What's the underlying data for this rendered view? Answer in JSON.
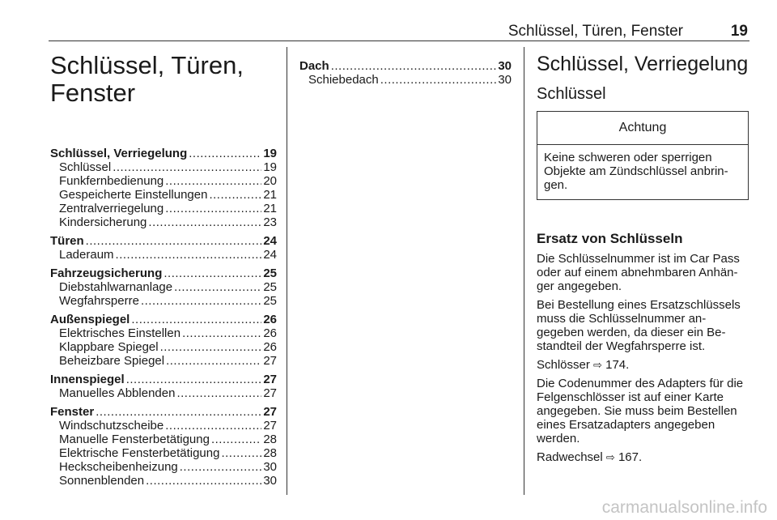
{
  "header": {
    "title": "Schlüssel, Türen, Fenster",
    "page": "19"
  },
  "chapter_title": "Schlüssel, Türen, Fenster",
  "toc": [
    {
      "label": "Schlüssel, Verriegelung",
      "page": "19",
      "subs": [
        {
          "label": "Schlüssel",
          "page": "19"
        },
        {
          "label": "Funkfernbedienung",
          "page": "20"
        },
        {
          "label": "Gespeicherte Einstellungen",
          "page": "21"
        },
        {
          "label": "Zentralverriegelung",
          "page": "21"
        },
        {
          "label": "Kindersicherung",
          "page": "23"
        }
      ]
    },
    {
      "label": "Türen",
      "page": "24",
      "subs": [
        {
          "label": "Laderaum",
          "page": "24"
        }
      ]
    },
    {
      "label": "Fahrzeugsicherung",
      "page": "25",
      "subs": [
        {
          "label": "Diebstahlwarnanlage",
          "page": "25"
        },
        {
          "label": "Wegfahrsperre",
          "page": "25"
        }
      ]
    },
    {
      "label": "Außenspiegel",
      "page": "26",
      "subs": [
        {
          "label": "Elektrisches Einstellen",
          "page": "26"
        },
        {
          "label": "Klappbare Spiegel",
          "page": "26"
        },
        {
          "label": "Beheizbare Spiegel",
          "page": "27"
        }
      ]
    },
    {
      "label": "Innenspiegel",
      "page": "27",
      "subs": [
        {
          "label": "Manuelles Abblenden",
          "page": "27"
        }
      ]
    },
    {
      "label": "Fenster",
      "page": "27",
      "subs": [
        {
          "label": "Windschutzscheibe",
          "page": "27"
        },
        {
          "label": "Manuelle Fensterbetätigung",
          "page": "28"
        },
        {
          "label": "Elektrische Fensterbetätigung",
          "page": "28"
        },
        {
          "label": "Heckscheibenheizung",
          "page": "30"
        },
        {
          "label": "Sonnenblenden",
          "page": "30"
        }
      ]
    },
    {
      "label": "Dach",
      "page": "30",
      "subs": [
        {
          "label": "Schiebedach",
          "page": "30"
        }
      ]
    }
  ],
  "section": {
    "title": "Schlüssel, Verriegelung",
    "subtitle": "Schlüssel",
    "caution": {
      "heading": "Achtung",
      "text": "Keine schweren oder sperrigen Objekte am Zündschlüssel anbrin­gen."
    },
    "subheading": "Ersatz von Schlüsseln",
    "paragraphs": [
      "Die Schlüsselnummer ist im Car Pass oder auf einem abnehmbaren Anhän­ger angegeben.",
      "Bei Bestellung eines Ersatzschlüs­sels muss die Schlüsselnummer an­gegeben werden, da dieser ein Be­standteil der Wegfahrsperre ist."
    ],
    "ref1": {
      "text": "Schlösser",
      "page": "174."
    },
    "paragraph3": "Die Codenummer des Adapters für die Felgenschlösser ist auf einer Karte angegeben. Sie muss beim Be­stellen eines Ersatzadapters angege­ben werden.",
    "ref2": {
      "text": "Radwechsel",
      "page": "167."
    },
    "ref_icon": "arrow-right-outline-icon"
  },
  "watermark": "carmanualsonline.info"
}
